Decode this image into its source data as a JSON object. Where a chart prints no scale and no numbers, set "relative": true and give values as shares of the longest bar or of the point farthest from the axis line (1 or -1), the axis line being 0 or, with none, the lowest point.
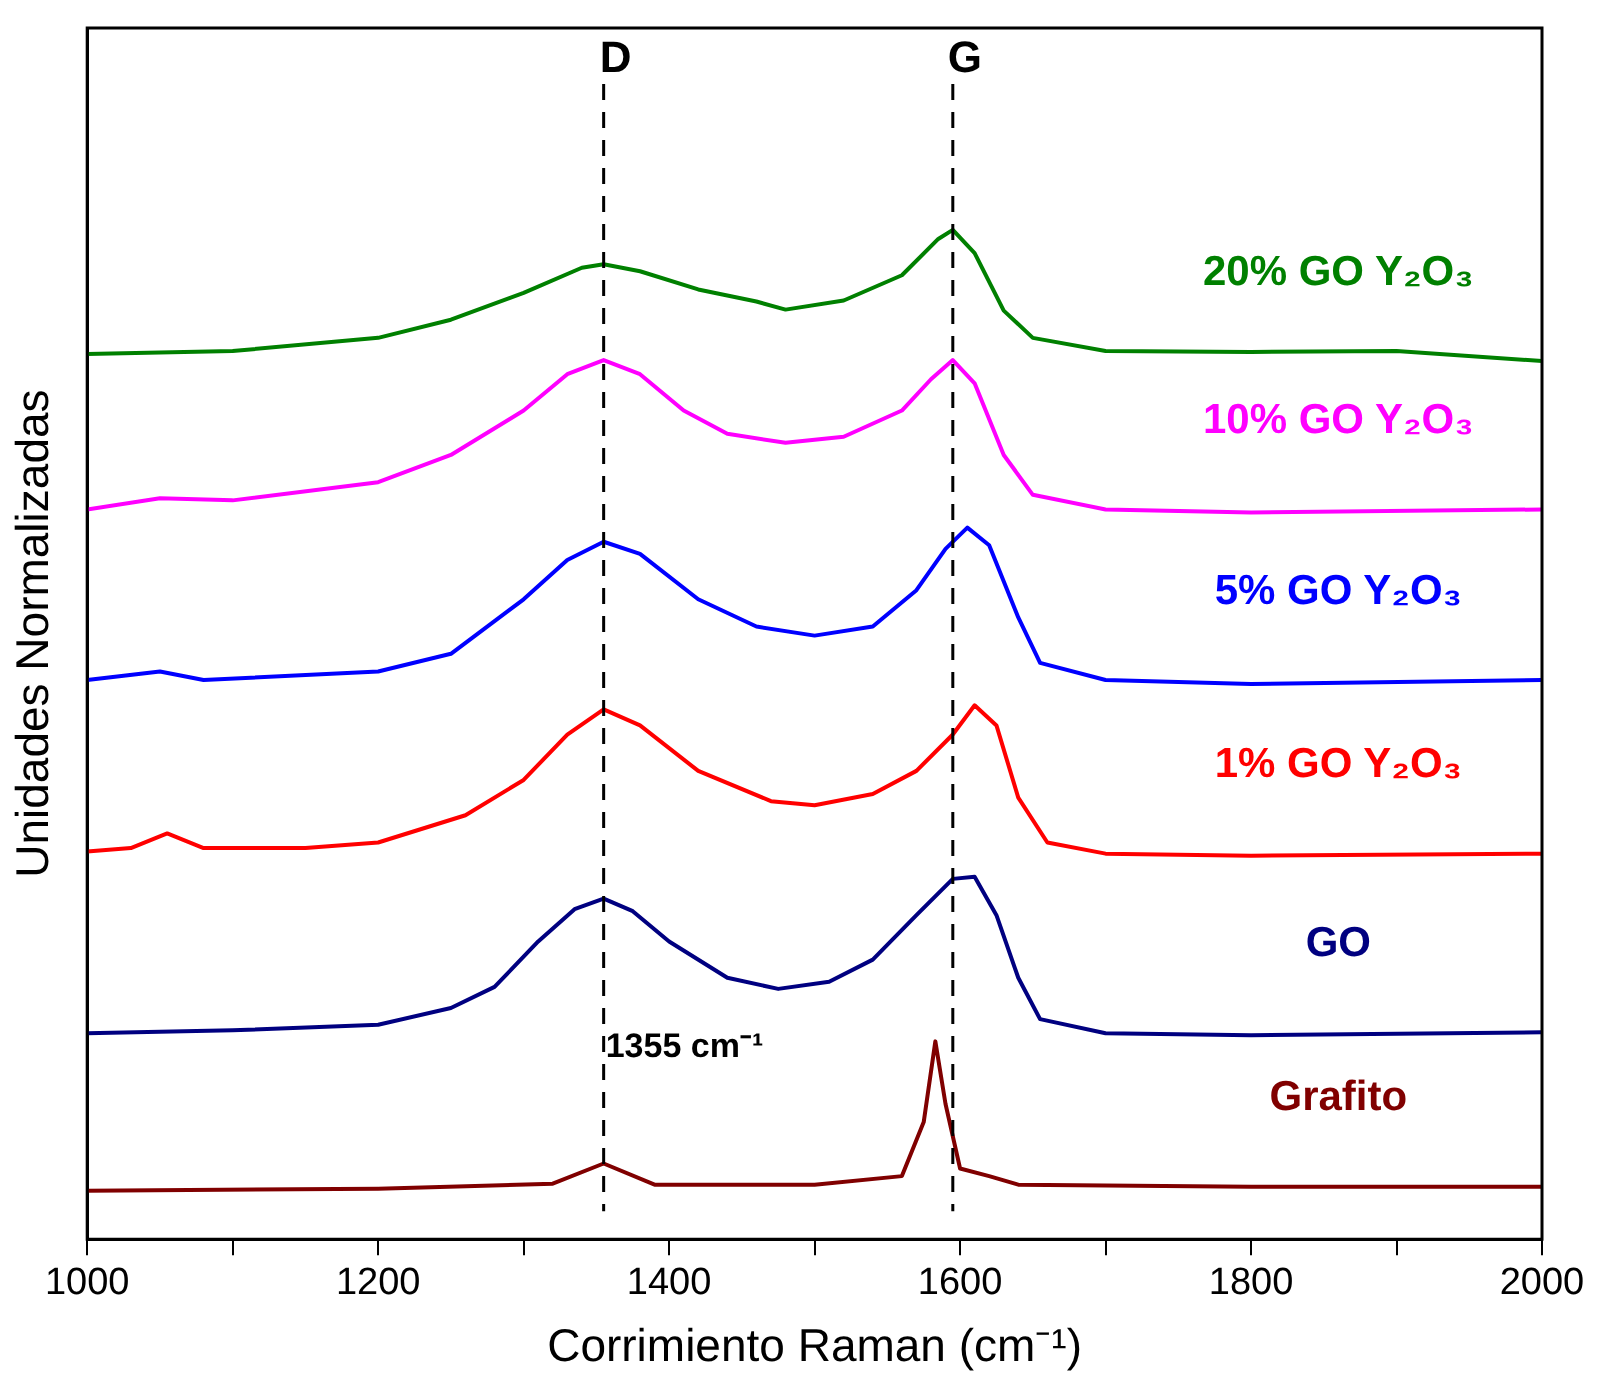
{
  "chart_data": {
    "type": "line",
    "relative": true,
    "xlabel": "Corrimiento Raman (cm⁻¹)",
    "ylabel": "Unidades Normalizadas",
    "xlim": [
      1000,
      2000
    ],
    "xticks": [
      1000,
      {
        "value": 1100,
        "label": null
      },
      1200,
      {
        "value": 1300,
        "label": null
      },
      1400,
      {
        "value": 1500,
        "label": null
      },
      1600,
      {
        "value": 1700,
        "label": null
      },
      1800,
      {
        "value": 1900,
        "label": null
      },
      2000
    ],
    "grid": false,
    "legend": false,
    "marker": "none",
    "line_style": "solid",
    "ref_lines": [
      {
        "axis": "x",
        "value": 1355,
        "label": "D",
        "color": "#000000",
        "line_style": "dashed"
      },
      {
        "axis": "x",
        "value": 1595,
        "label": "G",
        "color": "#000000",
        "line_style": "dashed"
      }
    ],
    "annotations": [
      {
        "text": "1355 cm⁻¹",
        "x": 1355,
        "y": 0.19
      }
    ],
    "series": [
      {
        "name": "Grafito",
        "color": "#800000",
        "x": [
          1000,
          1200,
          1320,
          1355,
          1390,
          1500,
          1560,
          1575,
          1583,
          1590,
          1600,
          1620,
          1640,
          1800,
          2000
        ],
        "values": [
          0.048,
          0.05,
          0.055,
          0.075,
          0.054,
          0.054,
          0.0625,
          0.116,
          0.196,
          0.134,
          0.07,
          0.0625,
          0.054,
          0.052,
          0.052
        ]
      },
      {
        "name": "GO",
        "color": "#000080",
        "x": [
          1000,
          1100,
          1200,
          1250,
          1280,
          1310,
          1335,
          1355,
          1375,
          1400,
          1440,
          1475,
          1510,
          1540,
          1570,
          1595,
          1610,
          1625,
          1640,
          1655,
          1700,
          1800,
          2000
        ],
        "values": [
          0.204,
          0.207,
          0.2125,
          0.229,
          0.25,
          0.295,
          0.327,
          0.3375,
          0.325,
          0.295,
          0.259,
          0.248,
          0.255,
          0.277,
          0.321,
          0.357,
          0.359,
          0.321,
          0.259,
          0.218,
          0.204,
          0.202,
          0.205
        ]
      },
      {
        "name": "1% GO Y₂O₃",
        "color": "#ff0000",
        "x": [
          1000,
          1030,
          1055,
          1080,
          1150,
          1200,
          1260,
          1300,
          1330,
          1355,
          1380,
          1420,
          1470,
          1500,
          1540,
          1570,
          1595,
          1610,
          1625,
          1640,
          1660,
          1700,
          1800,
          2000
        ],
        "values": [
          0.384,
          0.3875,
          0.402,
          0.3875,
          0.3875,
          0.393,
          0.42,
          0.455,
          0.5,
          0.525,
          0.509,
          0.464,
          0.434,
          0.43,
          0.441,
          0.464,
          0.5,
          0.529,
          0.509,
          0.4375,
          0.393,
          0.382,
          0.38,
          0.382
        ]
      },
      {
        "name": "5% GO Y₂O₃",
        "color": "#0000ff",
        "x": [
          1000,
          1050,
          1080,
          1200,
          1250,
          1300,
          1330,
          1355,
          1380,
          1420,
          1460,
          1500,
          1540,
          1570,
          1590,
          1605,
          1620,
          1640,
          1655,
          1700,
          1800,
          2000
        ],
        "values": [
          0.554,
          0.5625,
          0.554,
          0.5625,
          0.58,
          0.634,
          0.673,
          0.691,
          0.679,
          0.634,
          0.607,
          0.598,
          0.607,
          0.643,
          0.684,
          0.705,
          0.6875,
          0.616,
          0.571,
          0.554,
          0.55,
          0.554
        ]
      },
      {
        "name": "10% GO Y₂O₃",
        "color": "#ff00ff",
        "x": [
          1000,
          1050,
          1100,
          1200,
          1250,
          1300,
          1330,
          1355,
          1380,
          1410,
          1440,
          1480,
          1520,
          1560,
          1580,
          1595,
          1610,
          1630,
          1650,
          1700,
          1800,
          2000
        ],
        "values": [
          0.723,
          0.734,
          0.732,
          0.75,
          0.777,
          0.821,
          0.857,
          0.871,
          0.857,
          0.821,
          0.798,
          0.789,
          0.795,
          0.821,
          0.852,
          0.871,
          0.848,
          0.777,
          0.7375,
          0.723,
          0.72,
          0.723
        ]
      },
      {
        "name": "20% GO Y₂O₃",
        "color": "#008000",
        "x": [
          1000,
          1100,
          1200,
          1250,
          1300,
          1340,
          1355,
          1380,
          1420,
          1460,
          1480,
          1520,
          1560,
          1585,
          1595,
          1610,
          1630,
          1650,
          1700,
          1800,
          1900,
          2000
        ],
        "values": [
          0.877,
          0.88,
          0.893,
          0.911,
          0.9375,
          0.9625,
          0.966,
          0.959,
          0.941,
          0.929,
          0.921,
          0.93,
          0.955,
          0.991,
          1,
          0.977,
          0.92,
          0.893,
          0.88,
          0.879,
          0.88,
          0.87
        ]
      }
    ]
  }
}
